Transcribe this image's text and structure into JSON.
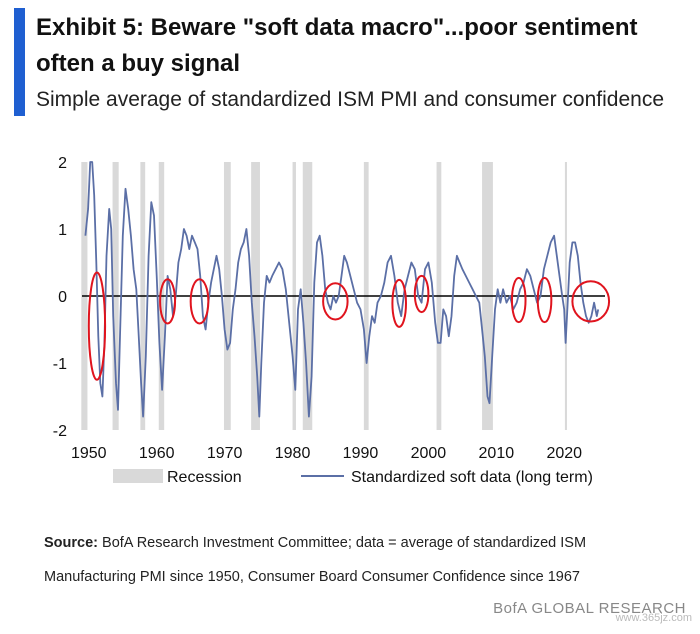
{
  "header": {
    "title": "Exhibit 5: Beware \"soft data macro\"...poor sentiment often a buy signal",
    "subtitle": "Simple average of standardized ISM PMI and consumer confidence"
  },
  "chart_data": {
    "type": "line",
    "title": "Exhibit 5: Beware \"soft data macro\"...poor sentiment often a buy signal",
    "subtitle": "Simple average of standardized ISM PMI and consumer confidence",
    "xlim": [
      1949,
      2026
    ],
    "ylim": [
      -2,
      2
    ],
    "xticks": [
      1950,
      1960,
      1970,
      1980,
      1990,
      2000,
      2010,
      2020
    ],
    "yticks": [
      -2,
      -1,
      0,
      1,
      2
    ],
    "grid": false,
    "legend": [
      "Recession",
      "Standardized soft data (long term)"
    ],
    "legend_position": "bottom",
    "colors": {
      "line": "#5b6fa6",
      "recession": "#d9d9d9",
      "circle": "#e0141e",
      "zero_line": "#000000"
    },
    "recessions": [
      [
        1948.9,
        1949.8
      ],
      [
        1953.5,
        1954.4
      ],
      [
        1957.6,
        1958.3
      ],
      [
        1960.3,
        1961.1
      ],
      [
        1969.9,
        1970.9
      ],
      [
        1973.9,
        1975.2
      ],
      [
        1980.0,
        1980.5
      ],
      [
        1981.5,
        1982.9
      ],
      [
        1990.5,
        1991.2
      ],
      [
        2001.2,
        2001.9
      ],
      [
        2007.9,
        2009.5
      ],
      [
        2020.1,
        2020.4
      ]
    ],
    "series": [
      {
        "values": [
          [
            1949.5,
            0.9
          ],
          [
            1949.9,
            1.3
          ],
          [
            1950.2,
            2.0
          ],
          [
            1950.5,
            2.0
          ],
          [
            1950.8,
            1.5
          ],
          [
            1951.1,
            0.5
          ],
          [
            1951.4,
            -0.6
          ],
          [
            1951.7,
            -1.3
          ],
          [
            1952.0,
            -1.5
          ],
          [
            1952.3,
            -0.7
          ],
          [
            1952.6,
            0.6
          ],
          [
            1953.0,
            1.3
          ],
          [
            1953.3,
            1.0
          ],
          [
            1953.6,
            -0.3
          ],
          [
            1954.0,
            -1.3
          ],
          [
            1954.3,
            -1.7
          ],
          [
            1954.6,
            -0.6
          ],
          [
            1955.0,
            0.9
          ],
          [
            1955.4,
            1.6
          ],
          [
            1955.8,
            1.3
          ],
          [
            1956.2,
            0.9
          ],
          [
            1956.6,
            0.4
          ],
          [
            1957.0,
            0.1
          ],
          [
            1957.3,
            -0.5
          ],
          [
            1957.7,
            -1.3
          ],
          [
            1958.0,
            -1.8
          ],
          [
            1958.4,
            -0.9
          ],
          [
            1958.8,
            0.6
          ],
          [
            1959.2,
            1.4
          ],
          [
            1959.6,
            1.2
          ],
          [
            1960.0,
            0.3
          ],
          [
            1960.4,
            -0.7
          ],
          [
            1960.8,
            -1.4
          ],
          [
            1961.2,
            -0.6
          ],
          [
            1961.6,
            0.3
          ],
          [
            1962.0,
            0.1
          ],
          [
            1962.4,
            -0.3
          ],
          [
            1962.8,
            0.0
          ],
          [
            1963.2,
            0.5
          ],
          [
            1963.6,
            0.7
          ],
          [
            1964.0,
            1.0
          ],
          [
            1964.4,
            0.9
          ],
          [
            1964.8,
            0.7
          ],
          [
            1965.2,
            0.9
          ],
          [
            1965.6,
            0.8
          ],
          [
            1966.0,
            0.7
          ],
          [
            1966.4,
            0.3
          ],
          [
            1966.8,
            -0.3
          ],
          [
            1967.2,
            -0.5
          ],
          [
            1967.6,
            -0.1
          ],
          [
            1968.0,
            0.2
          ],
          [
            1968.4,
            0.4
          ],
          [
            1968.8,
            0.6
          ],
          [
            1969.2,
            0.4
          ],
          [
            1969.6,
            0.0
          ],
          [
            1970.0,
            -0.5
          ],
          [
            1970.4,
            -0.8
          ],
          [
            1970.8,
            -0.7
          ],
          [
            1971.2,
            -0.2
          ],
          [
            1971.6,
            0.1
          ],
          [
            1972.0,
            0.5
          ],
          [
            1972.4,
            0.7
          ],
          [
            1972.8,
            0.8
          ],
          [
            1973.2,
            1.0
          ],
          [
            1973.6,
            0.6
          ],
          [
            1974.0,
            -0.1
          ],
          [
            1974.4,
            -0.6
          ],
          [
            1974.8,
            -1.2
          ],
          [
            1975.1,
            -1.8
          ],
          [
            1975.4,
            -1.0
          ],
          [
            1975.8,
            -0.1
          ],
          [
            1976.2,
            0.3
          ],
          [
            1976.6,
            0.2
          ],
          [
            1977.0,
            0.3
          ],
          [
            1977.5,
            0.4
          ],
          [
            1978.0,
            0.5
          ],
          [
            1978.5,
            0.4
          ],
          [
            1979.0,
            0.1
          ],
          [
            1979.5,
            -0.4
          ],
          [
            1980.0,
            -0.9
          ],
          [
            1980.4,
            -1.4
          ],
          [
            1980.8,
            -0.2
          ],
          [
            1981.2,
            0.1
          ],
          [
            1981.6,
            -0.4
          ],
          [
            1982.0,
            -1.0
          ],
          [
            1982.4,
            -1.8
          ],
          [
            1982.8,
            -1.2
          ],
          [
            1983.2,
            0.2
          ],
          [
            1983.6,
            0.8
          ],
          [
            1984.0,
            0.9
          ],
          [
            1984.4,
            0.6
          ],
          [
            1984.8,
            0.1
          ],
          [
            1985.2,
            -0.1
          ],
          [
            1985.6,
            -0.2
          ],
          [
            1986.0,
            0.0
          ],
          [
            1986.4,
            -0.1
          ],
          [
            1986.8,
            0.0
          ],
          [
            1987.2,
            0.3
          ],
          [
            1987.6,
            0.6
          ],
          [
            1988.0,
            0.5
          ],
          [
            1988.5,
            0.3
          ],
          [
            1989.0,
            0.1
          ],
          [
            1989.5,
            -0.1
          ],
          [
            1990.0,
            -0.2
          ],
          [
            1990.5,
            -0.5
          ],
          [
            1990.9,
            -1.0
          ],
          [
            1991.3,
            -0.6
          ],
          [
            1991.7,
            -0.3
          ],
          [
            1992.1,
            -0.4
          ],
          [
            1992.5,
            -0.1
          ],
          [
            1993.0,
            0.0
          ],
          [
            1993.5,
            0.2
          ],
          [
            1994.0,
            0.5
          ],
          [
            1994.5,
            0.6
          ],
          [
            1995.0,
            0.3
          ],
          [
            1995.5,
            -0.1
          ],
          [
            1996.0,
            -0.3
          ],
          [
            1996.5,
            0.1
          ],
          [
            1997.0,
            0.3
          ],
          [
            1997.5,
            0.5
          ],
          [
            1998.0,
            0.4
          ],
          [
            1998.5,
            0.0
          ],
          [
            1999.0,
            -0.1
          ],
          [
            1999.5,
            0.4
          ],
          [
            2000.0,
            0.5
          ],
          [
            2000.5,
            0.2
          ],
          [
            2001.0,
            -0.4
          ],
          [
            2001.4,
            -0.7
          ],
          [
            2001.8,
            -0.7
          ],
          [
            2002.2,
            -0.2
          ],
          [
            2002.6,
            -0.3
          ],
          [
            2003.0,
            -0.6
          ],
          [
            2003.4,
            -0.3
          ],
          [
            2003.8,
            0.3
          ],
          [
            2004.2,
            0.6
          ],
          [
            2004.6,
            0.5
          ],
          [
            2005.0,
            0.4
          ],
          [
            2005.5,
            0.3
          ],
          [
            2006.0,
            0.2
          ],
          [
            2006.5,
            0.1
          ],
          [
            2007.0,
            0.0
          ],
          [
            2007.5,
            -0.1
          ],
          [
            2007.9,
            -0.5
          ],
          [
            2008.3,
            -0.9
          ],
          [
            2008.7,
            -1.5
          ],
          [
            2009.0,
            -1.6
          ],
          [
            2009.4,
            -0.9
          ],
          [
            2009.8,
            -0.2
          ],
          [
            2010.2,
            0.1
          ],
          [
            2010.6,
            -0.1
          ],
          [
            2011.0,
            0.1
          ],
          [
            2011.5,
            -0.1
          ],
          [
            2012.0,
            0.0
          ],
          [
            2012.5,
            -0.2
          ],
          [
            2013.0,
            -0.1
          ],
          [
            2013.5,
            0.1
          ],
          [
            2014.0,
            0.2
          ],
          [
            2014.5,
            0.4
          ],
          [
            2015.0,
            0.3
          ],
          [
            2015.5,
            0.1
          ],
          [
            2016.0,
            -0.1
          ],
          [
            2016.5,
            0.0
          ],
          [
            2017.0,
            0.4
          ],
          [
            2017.5,
            0.6
          ],
          [
            2018.0,
            0.8
          ],
          [
            2018.5,
            0.9
          ],
          [
            2018.9,
            0.6
          ],
          [
            2019.3,
            0.3
          ],
          [
            2019.7,
            0.0
          ],
          [
            2020.0,
            -0.2
          ],
          [
            2020.2,
            -0.7
          ],
          [
            2020.4,
            -0.3
          ],
          [
            2020.8,
            0.5
          ],
          [
            2021.2,
            0.8
          ],
          [
            2021.6,
            0.8
          ],
          [
            2022.0,
            0.6
          ],
          [
            2022.4,
            0.2
          ],
          [
            2022.8,
            -0.1
          ],
          [
            2023.2,
            -0.3
          ],
          [
            2023.6,
            -0.4
          ],
          [
            2024.0,
            -0.3
          ],
          [
            2024.4,
            -0.1
          ],
          [
            2024.8,
            -0.3
          ],
          [
            2025.0,
            -0.2
          ]
        ]
      }
    ],
    "circled_lows": [
      {
        "x": 1951.2,
        "y": -0.45,
        "rx_years": 1.2,
        "ry_units": 0.8
      },
      {
        "x": 1961.6,
        "y": -0.08,
        "rx_years": 1.1,
        "ry_units": 0.33
      },
      {
        "x": 1966.3,
        "y": -0.08,
        "rx_years": 1.3,
        "ry_units": 0.33
      },
      {
        "x": 1986.3,
        "y": -0.08,
        "rx_years": 1.8,
        "ry_units": 0.27
      },
      {
        "x": 1995.7,
        "y": -0.11,
        "rx_years": 1.0,
        "ry_units": 0.35
      },
      {
        "x": 1999.0,
        "y": 0.03,
        "rx_years": 1.0,
        "ry_units": 0.27
      },
      {
        "x": 2013.3,
        "y": -0.06,
        "rx_years": 1.0,
        "ry_units": 0.33
      },
      {
        "x": 2017.1,
        "y": -0.06,
        "rx_years": 1.0,
        "ry_units": 0.33
      },
      {
        "x": 2023.9,
        "y": -0.08,
        "rx_years": 2.7,
        "ry_units": 0.3
      }
    ]
  },
  "footer": {
    "source_label": "Source:",
    "source_text": "BofA Research Investment Committee; data = average of standardized ISM Manufacturing PMI since 1950, Consumer Board Consumer Confidence since 1967",
    "brand": "BofA GLOBAL RESEARCH",
    "watermark": "www.365jz.com"
  }
}
